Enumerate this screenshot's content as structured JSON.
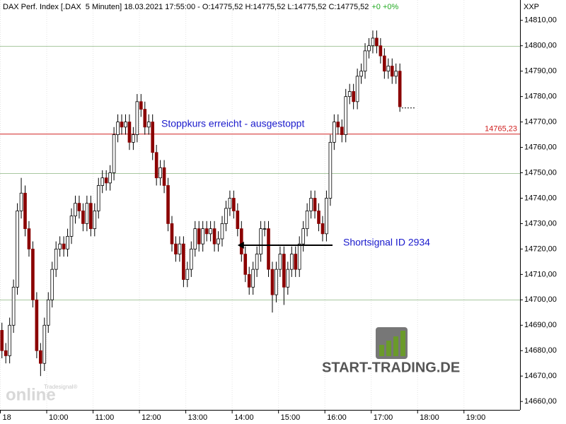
{
  "chart_data": {
    "type": "candlestick",
    "title": "DAX Perf. Index [.DAX  5 Minuten] 18.03.2021 17:55:00 - O:14775,52 H:14775,52 L:14775,52 C:14775,52",
    "change": "+0 +0%",
    "currency": "XXP",
    "x": [
      "09:00",
      "09:05",
      "09:10",
      "09:15",
      "09:20",
      "09:25",
      "09:30",
      "09:35",
      "09:40",
      "09:45",
      "09:50",
      "09:55",
      "10:00",
      "10:05",
      "10:10",
      "10:15",
      "10:20",
      "10:25",
      "10:30",
      "10:35",
      "10:40",
      "10:45",
      "10:50",
      "10:55",
      "11:00",
      "11:05",
      "11:10",
      "11:15",
      "11:20",
      "11:25",
      "11:30",
      "11:35",
      "11:40",
      "11:45",
      "11:50",
      "11:55",
      "12:00",
      "12:05",
      "12:10",
      "12:15",
      "12:20",
      "12:25",
      "12:30",
      "12:35",
      "12:40",
      "12:45",
      "12:50",
      "12:55",
      "13:00",
      "13:05",
      "13:10",
      "13:15",
      "13:20",
      "13:25",
      "13:30",
      "13:35",
      "13:40",
      "13:45",
      "13:50",
      "13:55",
      "14:00",
      "14:05",
      "14:10",
      "14:15",
      "14:20",
      "14:25",
      "14:30",
      "14:35",
      "14:40",
      "14:45",
      "14:50",
      "14:55",
      "15:00",
      "15:05",
      "15:10",
      "15:15",
      "15:20",
      "15:25",
      "15:30",
      "15:35",
      "15:40",
      "15:45",
      "15:50",
      "15:55",
      "16:00",
      "16:05",
      "16:10",
      "16:15",
      "16:20",
      "16:25",
      "16:30",
      "16:35",
      "16:40",
      "16:45",
      "16:50",
      "16:55",
      "17:00",
      "17:05",
      "17:10",
      "17:15",
      "17:20",
      "17:25",
      "17:30",
      "17:35"
    ],
    "open": [
      14688,
      14680,
      14678,
      14690,
      14705,
      14735,
      14742,
      14728,
      14720,
      14700,
      14680,
      14675,
      14690,
      14700,
      14712,
      14720,
      14722,
      14720,
      14725,
      14733,
      14738,
      14735,
      14730,
      14738,
      14728,
      14735,
      14745,
      14748,
      14746,
      14750,
      14765,
      14770,
      14768,
      14770,
      14762,
      14765,
      14778,
      14775,
      14768,
      14770,
      14758,
      14748,
      14752,
      14745,
      14730,
      14722,
      14718,
      14722,
      14708,
      14712,
      14720,
      14728,
      14722,
      14728,
      14726,
      14728,
      14722,
      14724,
      14730,
      14736,
      14740,
      14735,
      14728,
      14718,
      14710,
      14705,
      14712,
      14718,
      14728,
      14728,
      14712,
      14702,
      14712,
      14718,
      14705,
      14712,
      14718,
      14712,
      14722,
      14728,
      14735,
      14740,
      14735,
      14730,
      14726,
      14740,
      14762,
      14770,
      14768,
      14765,
      14780,
      14782,
      14778,
      14788,
      14790,
      14798,
      14800,
      14803,
      14800,
      14796,
      14790,
      14792,
      14788,
      14790
    ],
    "high": [
      14691,
      14683,
      14693,
      14708,
      14738,
      14748,
      14745,
      14731,
      14723,
      14703,
      14683,
      14693,
      14703,
      14715,
      14723,
      14725,
      14725,
      14728,
      14736,
      14741,
      14741,
      14738,
      14741,
      14741,
      14738,
      14748,
      14751,
      14751,
      14753,
      14768,
      14773,
      14773,
      14773,
      14773,
      14768,
      14781,
      14781,
      14778,
      14773,
      14773,
      14761,
      14755,
      14755,
      14748,
      14733,
      14725,
      14725,
      14725,
      14715,
      14723,
      14731,
      14731,
      14731,
      14731,
      14731,
      14731,
      14727,
      14733,
      14739,
      14743,
      14743,
      14738,
      14731,
      14721,
      14713,
      14715,
      14721,
      14731,
      14731,
      14731,
      14715,
      14715,
      14721,
      14721,
      14715,
      14721,
      14721,
      14725,
      14731,
      14738,
      14743,
      14743,
      14738,
      14733,
      14743,
      14765,
      14773,
      14773,
      14771,
      14783,
      14785,
      14785,
      14791,
      14793,
      14801,
      14803,
      14806,
      14806,
      14803,
      14799,
      14795,
      14795,
      14793,
      14793
    ],
    "low": [
      14677,
      14675,
      14675,
      14687,
      14702,
      14732,
      14725,
      14717,
      14697,
      14677,
      14670,
      14672,
      14687,
      14697,
      14709,
      14717,
      14717,
      14717,
      14722,
      14730,
      14732,
      14727,
      14727,
      14725,
      14725,
      14732,
      14742,
      14743,
      14743,
      14747,
      14762,
      14765,
      14765,
      14759,
      14759,
      14762,
      14772,
      14765,
      14765,
      14755,
      14745,
      14745,
      14742,
      14727,
      14719,
      14715,
      14715,
      14705,
      14705,
      14709,
      14717,
      14719,
      14719,
      14723,
      14723,
      14719,
      14719,
      14721,
      14727,
      14733,
      14732,
      14725,
      14715,
      14707,
      14702,
      14702,
      14709,
      14715,
      14725,
      14709,
      14695,
      14699,
      14709,
      14698,
      14702,
      14709,
      14709,
      14709,
      14719,
      14725,
      14732,
      14732,
      14727,
      14723,
      14723,
      14737,
      14759,
      14765,
      14762,
      14762,
      14777,
      14775,
      14775,
      14785,
      14787,
      14795,
      14797,
      14797,
      14793,
      14787,
      14787,
      14785,
      14785,
      14774
    ],
    "close": [
      14680,
      14678,
      14690,
      14705,
      14735,
      14742,
      14728,
      14720,
      14700,
      14680,
      14675,
      14690,
      14700,
      14712,
      14720,
      14722,
      14720,
      14725,
      14733,
      14738,
      14735,
      14730,
      14738,
      14728,
      14735,
      14745,
      14748,
      14746,
      14750,
      14765,
      14770,
      14768,
      14770,
      14762,
      14765,
      14778,
      14775,
      14768,
      14770,
      14758,
      14748,
      14752,
      14745,
      14730,
      14722,
      14718,
      14722,
      14708,
      14712,
      14720,
      14728,
      14722,
      14728,
      14726,
      14728,
      14722,
      14724,
      14730,
      14736,
      14740,
      14735,
      14728,
      14718,
      14710,
      14705,
      14712,
      14718,
      14728,
      14728,
      14712,
      14702,
      14712,
      14718,
      14705,
      14712,
      14718,
      14712,
      14722,
      14728,
      14735,
      14740,
      14735,
      14730,
      14726,
      14740,
      14762,
      14770,
      14768,
      14765,
      14780,
      14782,
      14778,
      14788,
      14790,
      14798,
      14800,
      14803,
      14800,
      14796,
      14790,
      14792,
      14788,
      14790,
      14776
    ],
    "up_color": "#ffffff",
    "down_color": "#8b0000",
    "xlim": [
      "09:00",
      "20:13"
    ],
    "xticks": [
      {
        "value": "09:00",
        "label": "18"
      },
      "10:00",
      "11:00",
      "12:00",
      "13:00",
      "14:00",
      "15:00",
      "16:00",
      "17:00",
      "18:00",
      "19:00"
    ],
    "ylim": [
      14656.7,
      14818
    ],
    "yticks": [
      {
        "value": 14660,
        "label": "14660,00"
      },
      {
        "value": 14670,
        "label": "14670,00"
      },
      {
        "value": 14680,
        "label": "14680,00"
      },
      {
        "value": 14690,
        "label": "14690,00"
      },
      {
        "value": 14700,
        "label": "14700,00"
      },
      {
        "value": 14710,
        "label": "14710,00"
      },
      {
        "value": 14720,
        "label": "14720,00"
      },
      {
        "value": 14730,
        "label": "14730,00"
      },
      {
        "value": 14740,
        "label": "14740,00"
      },
      {
        "value": 14750,
        "label": "14750,00"
      },
      {
        "value": 14760,
        "label": "14760,00"
      },
      {
        "value": 14770,
        "label": "14770,00"
      },
      {
        "value": 14780,
        "label": "14780,00"
      },
      {
        "value": 14790,
        "label": "14790,00"
      },
      {
        "value": 14800,
        "label": "14800,00"
      },
      {
        "value": 14810,
        "label": "14810,00"
      }
    ],
    "grid_levels": [
      14700,
      14750,
      14800
    ],
    "stop_level": {
      "value": 14765.23,
      "label": "14765,23"
    },
    "last_price": 14775.52,
    "annotations": [
      {
        "text": "Stoppkurs erreicht - ausgestoppt"
      },
      {
        "text": "Shortsignal ID 2934",
        "arrow_to": "14:05",
        "level": 14721.5
      }
    ],
    "logo": {
      "brand": "START-TRADING.DE",
      "watermark": "online",
      "watermark_sub": "Tradesignal®"
    }
  }
}
